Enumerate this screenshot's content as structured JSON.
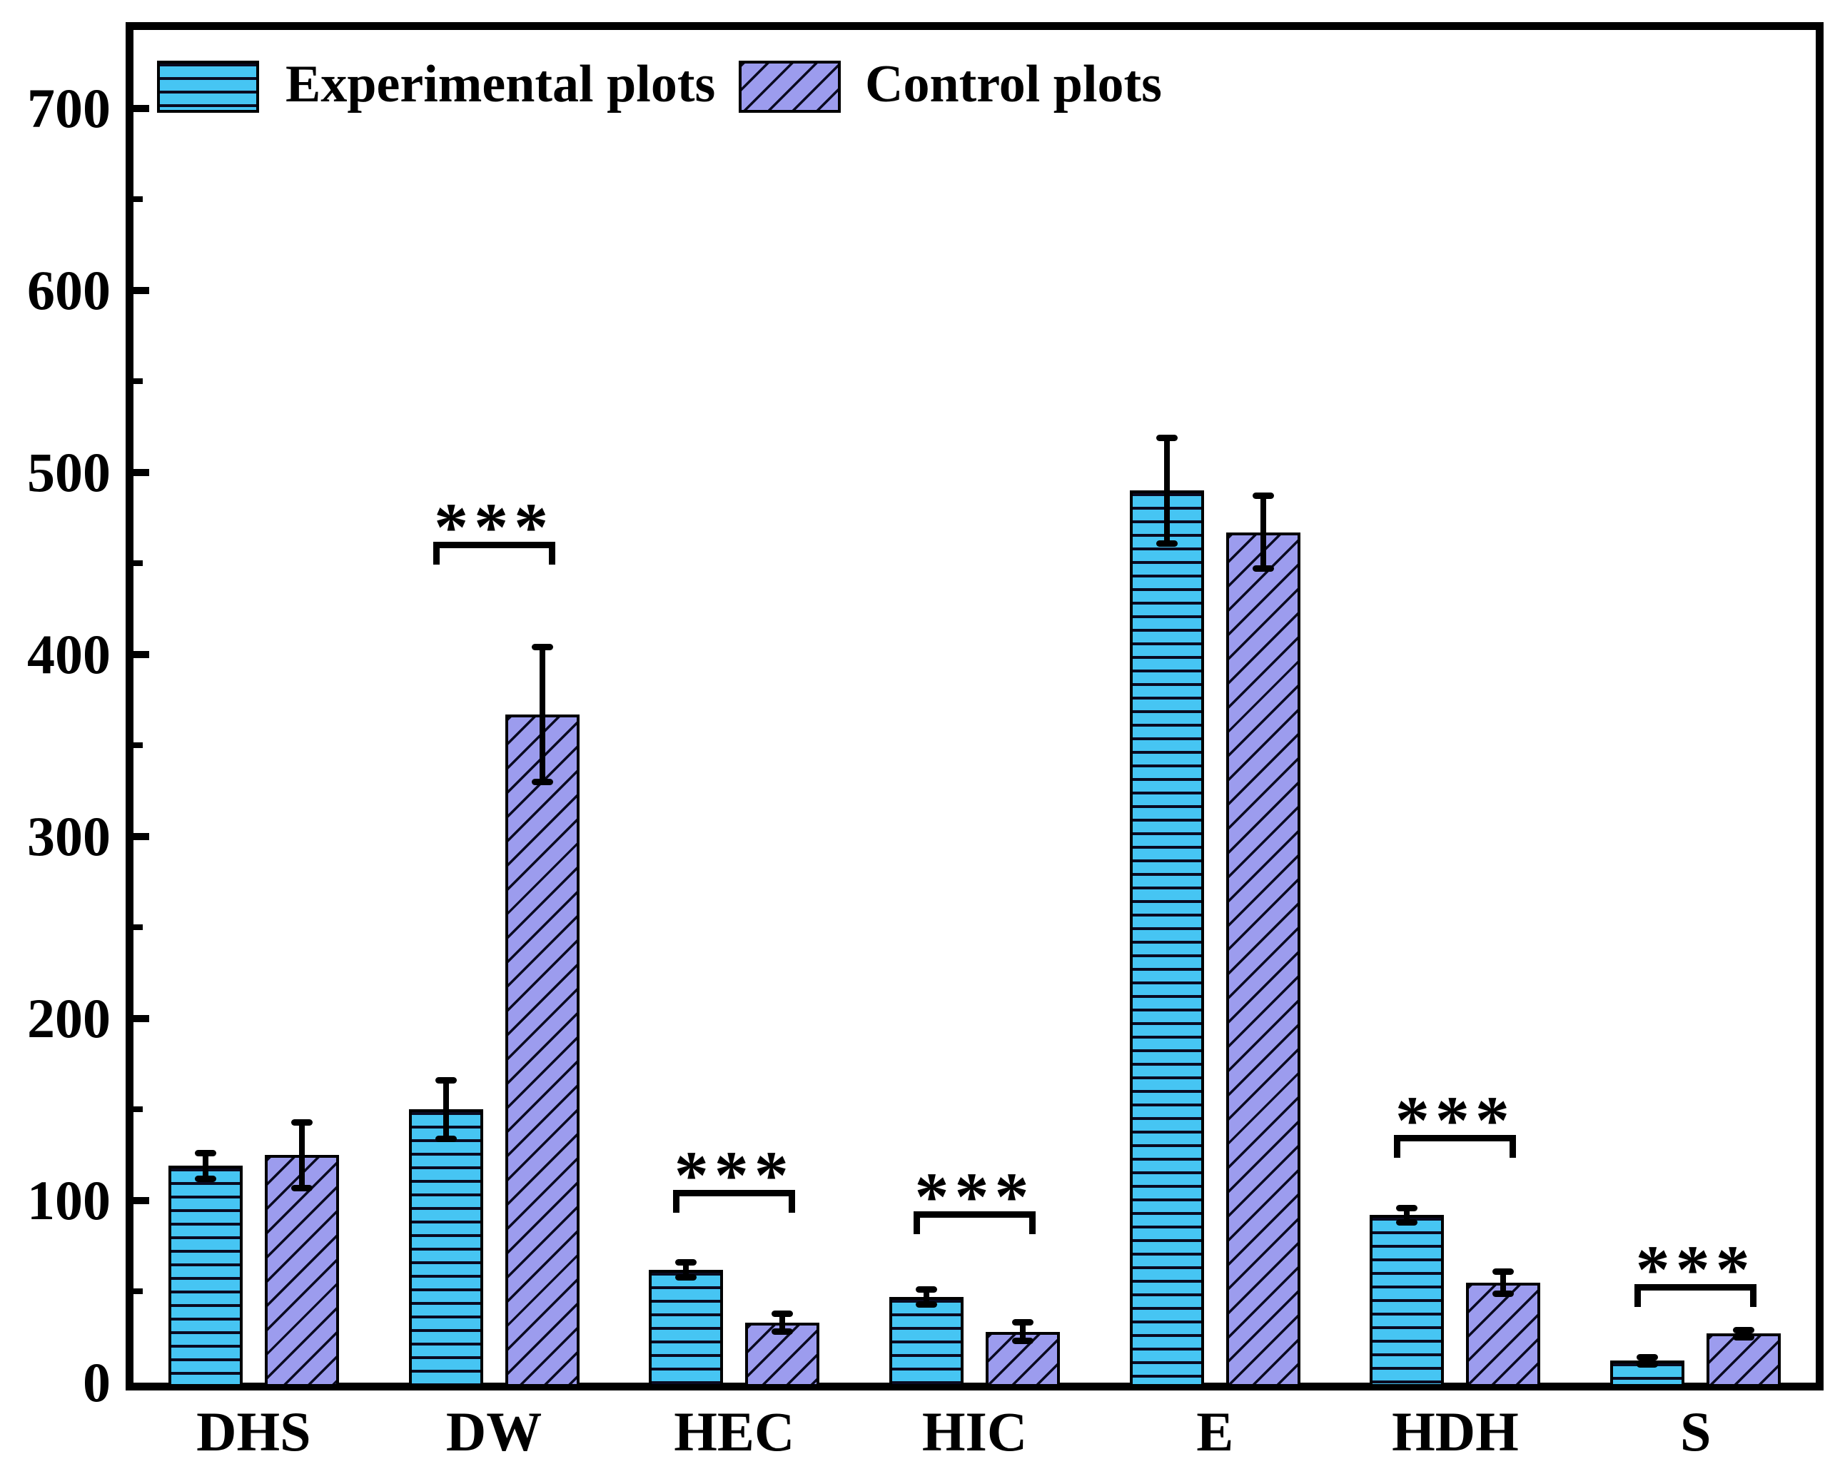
{
  "chart_data": {
    "type": "bar",
    "title": "",
    "xlabel": "",
    "ylabel": "",
    "categories": [
      "DHS",
      "DW",
      "HEC",
      "HIC",
      "E",
      "HDH",
      "S"
    ],
    "series": [
      {
        "name": "Experimental plots",
        "color": "#46C5F3",
        "hatch": "horizontal-lines",
        "hatch_color": "#0a0a20",
        "values": [
          119,
          150,
          62,
          47,
          490,
          92,
          12
        ],
        "errors": [
          7,
          16,
          4,
          4,
          29,
          4,
          2
        ]
      },
      {
        "name": "Control plots",
        "color": "#9C9CEE",
        "hatch": "diagonal-lines",
        "hatch_color": "#0a0a20",
        "values": [
          125,
          367,
          33,
          28,
          467,
          55,
          27
        ],
        "errors": [
          18,
          37,
          5,
          5,
          20,
          6,
          2
        ]
      }
    ],
    "ylim": [
      0,
      743
    ],
    "yticks_major": [
      0,
      100,
      200,
      300,
      400,
      500,
      600,
      700
    ],
    "ytick_minor_step": 50,
    "grid": false,
    "legend_position": "top-left-inside",
    "significance": [
      {
        "category": "DW",
        "label": "***",
        "y": 462
      },
      {
        "category": "HEC",
        "label": "***",
        "y": 106
      },
      {
        "category": "HIC",
        "label": "***",
        "y": 94
      },
      {
        "category": "HDH",
        "label": "***",
        "y": 136
      },
      {
        "category": "S",
        "label": "***",
        "y": 54
      }
    ]
  }
}
